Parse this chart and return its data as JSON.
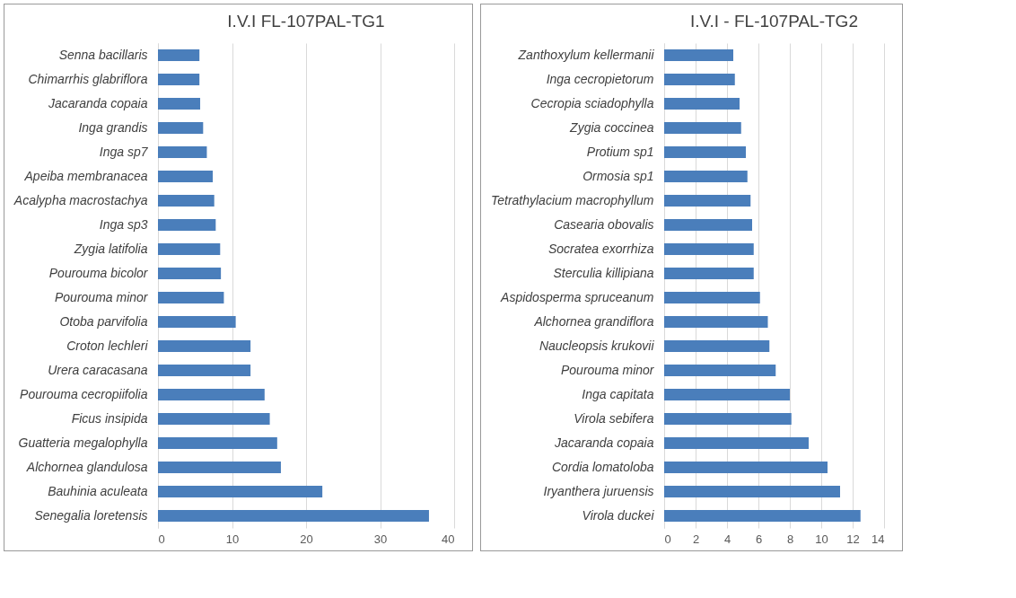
{
  "chart_data": [
    {
      "type": "bar",
      "orientation": "horizontal",
      "title": "I.V.I FL-107PAL-TG1",
      "categories": [
        "Senna bacillaris",
        "Chimarrhis glabriflora",
        "Jacaranda copaia",
        "Inga grandis",
        "Inga sp7",
        "Apeiba membranacea",
        "Acalypha macrostachya",
        "Inga sp3",
        "Zygia latifolia",
        "Pourouma bicolor",
        "Pourouma minor",
        "Otoba parvifolia",
        "Croton lechleri",
        "Urera caracasana",
        "Pourouma cecropiifolia",
        "Ficus insipida",
        "Guatteria megalophylla",
        "Alchornea glandulosa",
        "Bauhinia aculeata",
        "Senegalia loretensis"
      ],
      "values": [
        5.6,
        5.6,
        5.7,
        6.1,
        6.6,
        7.4,
        7.6,
        7.8,
        8.4,
        8.5,
        8.9,
        10.5,
        12.5,
        12.5,
        14.4,
        15.1,
        16.1,
        16.6,
        22.2,
        36.6
      ],
      "color": "#4a7ebb",
      "xlim": [
        0,
        40
      ],
      "xticks": [
        0,
        10,
        20,
        30,
        40
      ],
      "grid": "x"
    },
    {
      "type": "bar",
      "orientation": "horizontal",
      "title": "I.V.I - FL-107PAL-TG2",
      "categories": [
        "Zanthoxylum kellermanii",
        "Inga cecropietorum",
        "Cecropia sciadophylla",
        "Zygia coccinea",
        "Protium sp1",
        "Ormosia sp1",
        "Tetrathylacium macrophyllum",
        "Casearia obovalis",
        "Socratea exorrhiza",
        "Sterculia killipiana",
        "Aspidosperma spruceanum",
        "Alchornea grandiflora",
        "Naucleopsis krukovii",
        "Pourouma minor",
        "Inga capitata",
        "Virola sebifera",
        "Jacaranda copaia",
        "Cordia lomatoloba",
        "Iryanthera juruensis",
        "Virola duckei"
      ],
      "values": [
        4.4,
        4.5,
        4.8,
        4.9,
        5.2,
        5.3,
        5.5,
        5.6,
        5.7,
        5.7,
        6.1,
        6.6,
        6.7,
        7.1,
        8.0,
        8.1,
        9.2,
        10.4,
        11.2,
        12.5
      ],
      "color": "#4a7ebb",
      "xlim": [
        0,
        14
      ],
      "xticks": [
        0,
        2,
        4,
        6,
        8,
        10,
        12,
        14
      ],
      "grid": "x"
    }
  ]
}
